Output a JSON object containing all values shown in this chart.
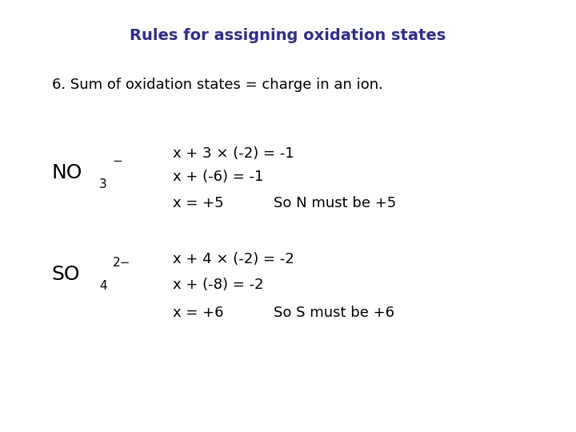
{
  "title": "Rules for assigning oxidation states",
  "title_color": "#2E2E8B",
  "title_fontsize": 14,
  "bg_color": "#ffffff",
  "text_color": "#000000",
  "body_fontsize": 13,
  "label_fontsize": 18,
  "sub_fontsize": 11,
  "sup_fontsize": 11,
  "rule_text": "6. Sum of oxidation states = charge in an ion.",
  "no3_eq1": "x + 3 × (-2) = -1",
  "no3_eq2": "x + (-6) = -1",
  "no3_eq3a": "x = +5",
  "no3_eq3b": "So N must be +5",
  "so4_eq1": "x + 4 × (-2) = -2",
  "so4_eq2": "x + (-8) = -2",
  "so4_eq3a": "x = +6",
  "so4_eq3b": "So S must be +6"
}
